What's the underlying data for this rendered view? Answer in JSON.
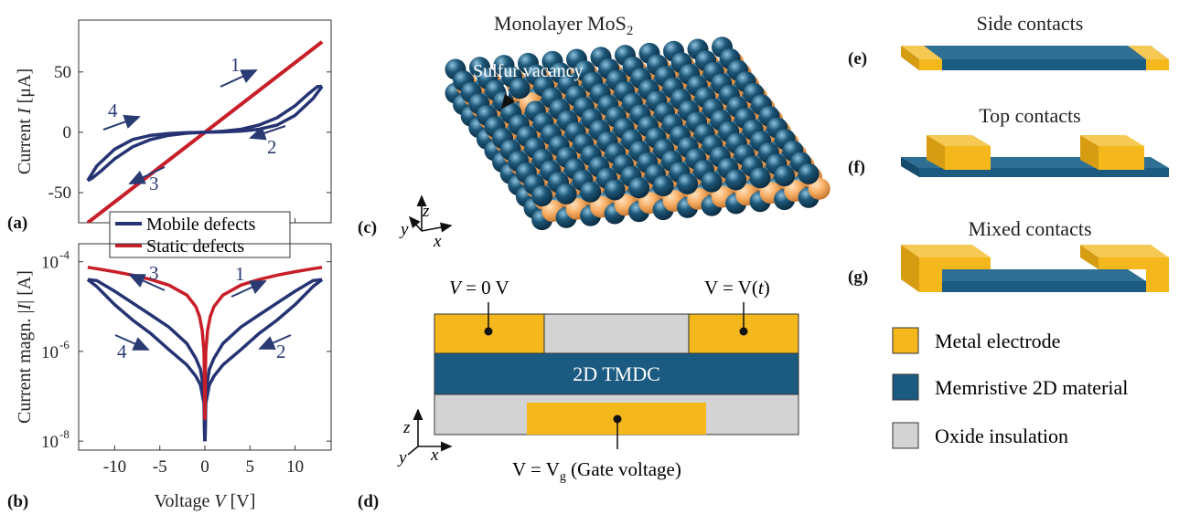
{
  "colors": {
    "mobile": "#263373",
    "static": "#c81e28",
    "gold": "#f5b81c",
    "teal": "#1b5b82",
    "gray": "#d3d3d3",
    "sulfur": "#f7ad63",
    "molybdenum": "#1d5779"
  },
  "chart_data": [
    {
      "panel": "(a)",
      "type": "line",
      "ylabel": "Current I [μA]",
      "xlim": [
        -14,
        14
      ],
      "ylim": [
        -75,
        93
      ],
      "yticks": [
        50,
        0,
        -50
      ],
      "series": [
        {
          "name": "Mobile defects",
          "branches": [
            {
              "x": [
                0,
                2,
                4,
                6,
                8,
                10,
                11.5,
                12.5,
                13
              ],
              "y": [
                0,
                0.8,
                2.5,
                6,
                12,
                22,
                32,
                38,
                38
              ]
            },
            {
              "x": [
                13,
                12,
                10,
                8,
                6,
                4,
                2,
                0
              ],
              "y": [
                38,
                28,
                14,
                6,
                2.5,
                1,
                0.3,
                0
              ]
            },
            {
              "x": [
                0,
                -2,
                -4,
                -6,
                -8,
                -10,
                -11.5,
                -12.5,
                -13
              ],
              "y": [
                0,
                -0.8,
                -2.5,
                -6,
                -12,
                -22,
                -32,
                -38,
                -40
              ]
            },
            {
              "x": [
                -13,
                -12,
                -10,
                -8,
                -6,
                -4,
                -2,
                0
              ],
              "y": [
                -40,
                -28,
                -14,
                -6,
                -2.5,
                -1,
                -0.3,
                0
              ]
            }
          ]
        },
        {
          "name": "Static defects",
          "x": [
            -13,
            13
          ],
          "y": [
            -75,
            75
          ]
        }
      ],
      "annotations": [
        {
          "text": "1"
        },
        {
          "text": "2"
        },
        {
          "text": "3"
        },
        {
          "text": "4"
        }
      ]
    },
    {
      "panel": "(b)",
      "type": "line",
      "xlabel": "Voltage V [V]",
      "ylabel": "Current magn. |I| [A]",
      "xlim": [
        -14,
        14
      ],
      "ylim_log10": [
        -8.2,
        -3.6
      ],
      "xticks": [
        -10,
        -5,
        0,
        5,
        10
      ],
      "yticks_log10": [
        -4,
        -6,
        -8
      ],
      "series": [
        {
          "name": "Mobile defects",
          "upper": {
            "x": [
              0.02,
              0.1,
              0.5,
              1,
              2,
              4,
              6,
              8,
              10,
              12,
              13
            ],
            "y": [
              1e-08,
              1.3e-07,
              4e-07,
              7e-07,
              1.5e-06,
              3.5e-06,
              6.5e-06,
              1.2e-05,
              2.2e-05,
              3.8e-05,
              4e-05
            ]
          },
          "lower": {
            "x": [
              0.02,
              0.1,
              0.5,
              1,
              2,
              4,
              6,
              8,
              10,
              12,
              13
            ],
            "y": [
              1e-08,
              7e-08,
              1.8e-07,
              2.8e-07,
              5e-07,
              1.1e-06,
              2.5e-06,
              5e-06,
              1.1e-05,
              2.8e-05,
              4e-05
            ]
          }
        },
        {
          "name": "Static defects",
          "upper": {
            "x": [
              0.01,
              0.05,
              0.1,
              0.3,
              0.6,
              1,
              2,
              4,
              6,
              8,
              10,
              12,
              13
            ],
            "y": [
              3e-08,
              3e-07,
              1e-06,
              3e-06,
              6e-06,
              1e-05,
              1.8e-05,
              3e-05,
              4e-05,
              5e-05,
              6e-05,
              7e-05,
              7.5e-05
            ]
          }
        }
      ],
      "annotations": [
        {
          "text": "1"
        },
        {
          "text": "2"
        },
        {
          "text": "3"
        },
        {
          "text": "4"
        }
      ]
    }
  ],
  "panel_labels": {
    "a": "(a)",
    "b": "(b)",
    "c": "(c)",
    "d": "(d)",
    "e": "(e)",
    "f": "(f)",
    "g": "(g)"
  },
  "legend": {
    "mobile": "Mobile defects",
    "static": "Static defects"
  },
  "axes": {
    "a_ylabel_pre": "Current ",
    "a_ylabel_var": "I",
    "a_ylabel_post": " [μA]",
    "b_ylabel_pre": "Current magn. |",
    "b_ylabel_var": "I",
    "b_ylabel_post": "| [A]",
    "b_xlabel_pre": "Voltage ",
    "b_xlabel_var": "V",
    "b_xlabel_post": " [V]",
    "a_yticks": [
      "50",
      "0",
      "-50"
    ],
    "b_yticks": [
      "10",
      "10",
      "10"
    ],
    "b_yticks_exp": [
      "-4",
      "-6",
      "-8"
    ],
    "b_xticks": [
      "-10",
      "-5",
      "0",
      "5",
      "10"
    ]
  },
  "panel_c": {
    "title": "Monolayer MoS",
    "title_sub": "2",
    "vacancy": "Sulfur vacancy",
    "x": "x",
    "y": "y",
    "z": "z"
  },
  "panel_d": {
    "left_voltage": "V = 0 V",
    "right_voltage_pre": "V = V(",
    "right_voltage_var": "t",
    "right_voltage_post": ")",
    "gate_pre": "V = V",
    "gate_sub": "g",
    "gate_post": " (Gate voltage)",
    "tmdc": "2D TMDC",
    "x": "x",
    "y": "y",
    "z": "z"
  },
  "contacts": {
    "side": "Side contacts",
    "top": "Top contacts",
    "mixed": "Mixed contacts"
  },
  "material_legend": {
    "metal": "Metal electrode",
    "memristive": "Memristive 2D material",
    "oxide": "Oxide insulation"
  }
}
